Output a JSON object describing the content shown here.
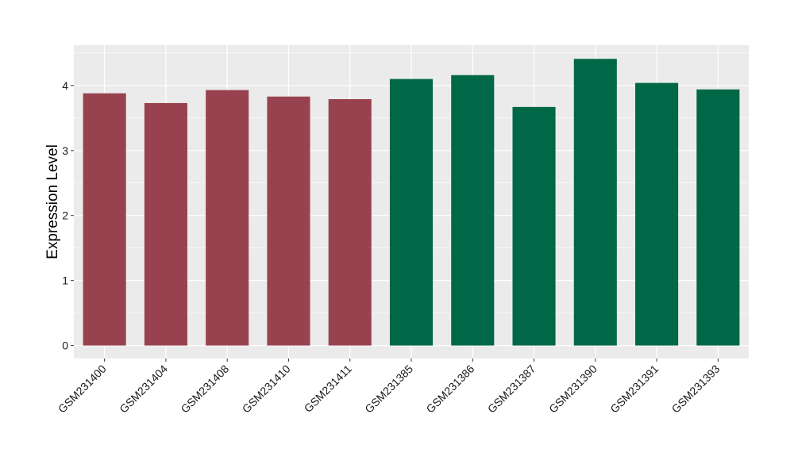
{
  "chart_data": {
    "type": "bar",
    "title": "",
    "xlabel": "",
    "ylabel": "Expression Level",
    "categories": [
      "GSM231400",
      "GSM231404",
      "GSM231408",
      "GSM231410",
      "GSM231411",
      "GSM231385",
      "GSM231386",
      "GSM231387",
      "GSM231390",
      "GSM231391",
      "GSM231393"
    ],
    "values": [
      3.88,
      3.73,
      3.93,
      3.83,
      3.79,
      4.1,
      4.16,
      3.67,
      4.41,
      4.04,
      3.94
    ],
    "groups": [
      0,
      0,
      0,
      0,
      0,
      1,
      1,
      1,
      1,
      1,
      1
    ],
    "group_colors": [
      "#99424F",
      "#006847"
    ],
    "ylim": [
      -0.2,
      4.62
    ],
    "yticks": [
      0,
      1,
      2,
      3,
      4
    ],
    "grid": true,
    "background": "#EBEBEB",
    "gridline_color": "#FFFFFF"
  }
}
